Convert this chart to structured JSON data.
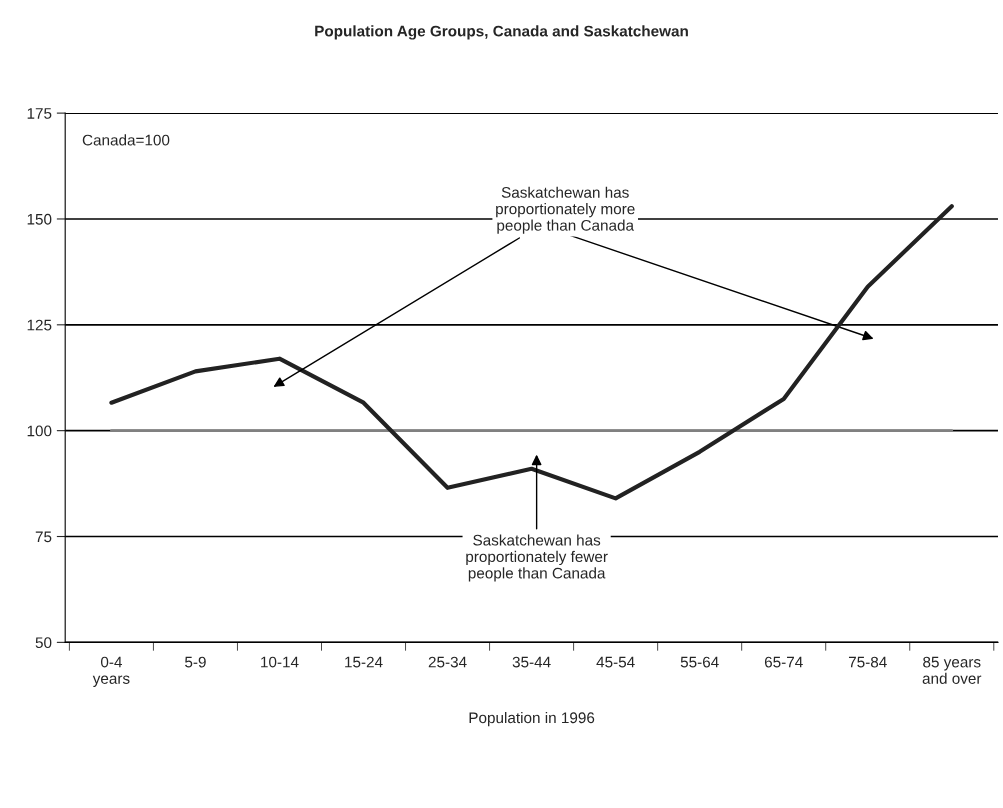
{
  "chart_data": {
    "type": "line",
    "title": "Population Age Groups, Canada and Saskatchewan",
    "xlabel": "Population in 1996",
    "categories": [
      "0-4\nyears",
      "5-9",
      "10-14",
      "15-24",
      "25-34",
      "35-44",
      "45-54",
      "55-64",
      "65-74",
      "75-84",
      "85 years\nand over"
    ],
    "series": [
      {
        "color": "#808080",
        "values": [
          100,
          100,
          100,
          100,
          100,
          100,
          100,
          100,
          100,
          100,
          100
        ]
      },
      {
        "color": "#222222",
        "values": [
          106.6,
          114,
          117,
          106.6,
          86.5,
          91,
          84,
          95,
          107.5,
          134,
          153
        ]
      }
    ],
    "ylim": [
      50,
      175
    ],
    "yticks": [
      50,
      75,
      100,
      125,
      150,
      175
    ],
    "grid": "y",
    "marker": "none",
    "line_style": "solid",
    "annotations": [
      "Canada=100",
      "Saskatchewan has\nproportionately more\npeople than Canada",
      "Saskatchewan has\nproportionately fewer\npeople than Canada"
    ]
  }
}
